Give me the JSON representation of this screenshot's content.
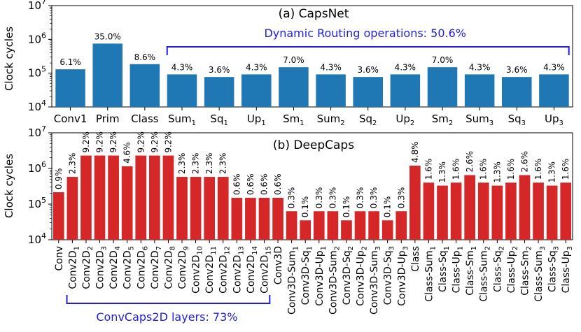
{
  "chart_data": [
    {
      "type": "bar",
      "id": "capsnet",
      "title": "(a) CapsNet",
      "ylabel": "Clock cycles",
      "yscale": "log",
      "ylim": [
        10000,
        10000000
      ],
      "yticks": [
        {
          "v": 10000,
          "label": "10^4"
        },
        {
          "v": 100000,
          "label": "10^5"
        },
        {
          "v": 1000000,
          "label": "10^6"
        },
        {
          "v": 10000000,
          "label": "10^7"
        }
      ],
      "color": "#1f77b4",
      "bars": [
        {
          "name": "Conv1",
          "sub": "",
          "value": 130000,
          "label": "6.1%"
        },
        {
          "name": "Prim",
          "sub": "",
          "value": 750000,
          "label": "35.0%"
        },
        {
          "name": "Class",
          "sub": "",
          "value": 185000,
          "label": "8.6%"
        },
        {
          "name": "Sum",
          "sub": "1",
          "value": 92000,
          "label": "4.3%"
        },
        {
          "name": "Sq",
          "sub": "1",
          "value": 77000,
          "label": "3.6%"
        },
        {
          "name": "Up",
          "sub": "1",
          "value": 92000,
          "label": "4.3%"
        },
        {
          "name": "Sm",
          "sub": "1",
          "value": 150000,
          "label": "7.0%"
        },
        {
          "name": "Sum",
          "sub": "2",
          "value": 92000,
          "label": "4.3%"
        },
        {
          "name": "Sq",
          "sub": "2",
          "value": 77000,
          "label": "3.6%"
        },
        {
          "name": "Up",
          "sub": "2",
          "value": 92000,
          "label": "4.3%"
        },
        {
          "name": "Sm",
          "sub": "2",
          "value": 150000,
          "label": "7.0%"
        },
        {
          "name": "Sum",
          "sub": "3",
          "value": 92000,
          "label": "4.3%"
        },
        {
          "name": "Sq",
          "sub": "3",
          "value": 77000,
          "label": "3.6%"
        },
        {
          "name": "Up",
          "sub": "3",
          "value": 92000,
          "label": "4.3%"
        }
      ],
      "annotation": {
        "text": "Dynamic Routing operations: 50.6%",
        "from_bar": 3,
        "to_bar": 13,
        "color": "#1f1fdd"
      }
    },
    {
      "type": "bar",
      "id": "deepcaps",
      "title": "(b) DeepCaps",
      "ylabel": "Clock cycles",
      "yscale": "log",
      "ylim": [
        10000,
        10000000
      ],
      "yticks": [
        {
          "v": 10000,
          "label": "10^4"
        },
        {
          "v": 100000,
          "label": "10^5"
        },
        {
          "v": 1000000,
          "label": "10^6"
        },
        {
          "v": 10000000,
          "label": "10^7"
        }
      ],
      "color": "#d62728",
      "bars": [
        {
          "name": "Conv",
          "sub": "",
          "value": 215000,
          "label": "0.9%"
        },
        {
          "name": "Conv2D",
          "sub": "1",
          "value": 580000,
          "label": "2.3%"
        },
        {
          "name": "Conv2D",
          "sub": "2",
          "value": 2300000,
          "label": "9.2%"
        },
        {
          "name": "Conv2D",
          "sub": "3",
          "value": 2300000,
          "label": "9.2%"
        },
        {
          "name": "Conv2D",
          "sub": "4",
          "value": 2300000,
          "label": "9.2%"
        },
        {
          "name": "Conv2D",
          "sub": "5",
          "value": 1150000,
          "label": "4.6%"
        },
        {
          "name": "Conv2D",
          "sub": "6",
          "value": 2300000,
          "label": "9.2%"
        },
        {
          "name": "Conv2D",
          "sub": "7",
          "value": 2300000,
          "label": "9.2%"
        },
        {
          "name": "Conv2D",
          "sub": "8",
          "value": 2300000,
          "label": "9.2%"
        },
        {
          "name": "Conv2D",
          "sub": "9",
          "value": 580000,
          "label": "2.3%"
        },
        {
          "name": "Conv2D",
          "sub": "10",
          "value": 580000,
          "label": "2.3%"
        },
        {
          "name": "Conv2D",
          "sub": "11",
          "value": 580000,
          "label": "2.3%"
        },
        {
          "name": "Conv2D",
          "sub": "12",
          "value": 580000,
          "label": "2.3%"
        },
        {
          "name": "Conv2D",
          "sub": "13",
          "value": 150000,
          "label": "0.6%"
        },
        {
          "name": "Conv2D",
          "sub": "14",
          "value": 150000,
          "label": "0.6%"
        },
        {
          "name": "Conv2D",
          "sub": "15",
          "value": 150000,
          "label": "0.6%"
        },
        {
          "name": "Conv3D",
          "sub": "",
          "value": 150000,
          "label": "0.6%"
        },
        {
          "name": "Conv3D-Sum",
          "sub": "1",
          "value": 63000,
          "label": "0.3%"
        },
        {
          "name": "Conv3D-Sq",
          "sub": "1",
          "value": 35000,
          "label": "0.1%"
        },
        {
          "name": "Conv3D-Up",
          "sub": "1",
          "value": 63000,
          "label": "0.3%"
        },
        {
          "name": "Conv3D-Sum",
          "sub": "2",
          "value": 63000,
          "label": "0.3%"
        },
        {
          "name": "Conv3D-Sq",
          "sub": "2",
          "value": 35000,
          "label": "0.1%"
        },
        {
          "name": "Conv3D-Up",
          "sub": "2",
          "value": 63000,
          "label": "0.3%"
        },
        {
          "name": "Conv3D-Sum",
          "sub": "3",
          "value": 63000,
          "label": "0.3%"
        },
        {
          "name": "Conv3D-Sq",
          "sub": "3",
          "value": 35000,
          "label": "0.1%"
        },
        {
          "name": "Conv3D-Up",
          "sub": "3",
          "value": 63000,
          "label": "0.3%"
        },
        {
          "name": "Class",
          "sub": "",
          "value": 1200000,
          "label": "4.8%"
        },
        {
          "name": "Class-Sum",
          "sub": "1",
          "value": 400000,
          "label": "1.6%"
        },
        {
          "name": "Class-Sq",
          "sub": "1",
          "value": 330000,
          "label": "1.3%"
        },
        {
          "name": "Class-Up",
          "sub": "1",
          "value": 400000,
          "label": "1.6%"
        },
        {
          "name": "Class-Sm",
          "sub": "1",
          "value": 650000,
          "label": "2.6%"
        },
        {
          "name": "Class-Sum",
          "sub": "2",
          "value": 400000,
          "label": "1.6%"
        },
        {
          "name": "Class-Sq",
          "sub": "2",
          "value": 330000,
          "label": "1.3%"
        },
        {
          "name": "Class-Up",
          "sub": "2",
          "value": 400000,
          "label": "1.6%"
        },
        {
          "name": "Class-Sm",
          "sub": "2",
          "value": 650000,
          "label": "2.6%"
        },
        {
          "name": "Class-Sum",
          "sub": "3",
          "value": 400000,
          "label": "1.6%"
        },
        {
          "name": "Class-Sq",
          "sub": "3",
          "value": 330000,
          "label": "1.3%"
        },
        {
          "name": "Class-Up",
          "sub": "3",
          "value": 400000,
          "label": "1.6%"
        }
      ],
      "annotation": {
        "text": "ConvCaps2D layers: 73%",
        "from_bar": 1,
        "to_bar": 15,
        "color": "#1f1fdd"
      }
    }
  ]
}
